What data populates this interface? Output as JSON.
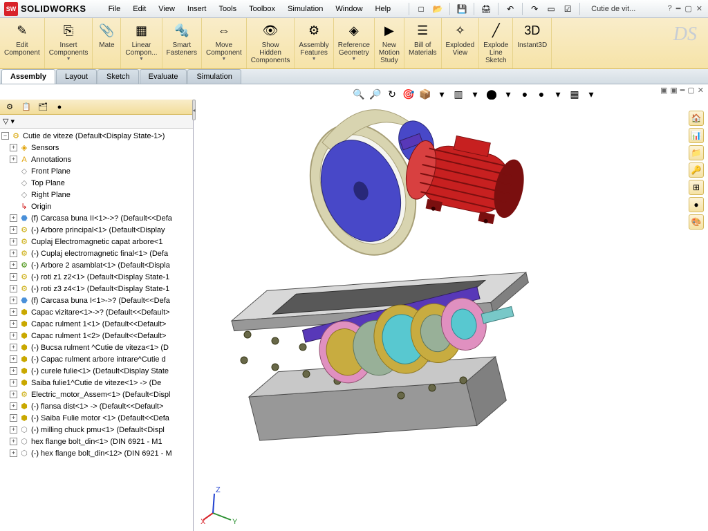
{
  "brand": "SOLIDWORKS",
  "logo_text": "SW",
  "menus": [
    "File",
    "Edit",
    "View",
    "Insert",
    "Tools",
    "Toolbox",
    "Simulation",
    "Window",
    "Help"
  ],
  "doc_name": "Cutie de vit...",
  "help_icon": "?",
  "qat": {
    "new": "□",
    "open": "📂",
    "save": "💾",
    "print": "🖨",
    "undo": "↶",
    "redo": "↷",
    "select": "▭",
    "options": "☑"
  },
  "ribbon": [
    {
      "icon": "✎",
      "label": "Edit\nComponent",
      "dd": false
    },
    {
      "icon": "⎘",
      "label": "Insert\nComponents",
      "dd": true
    },
    {
      "icon": "📎",
      "label": "Mate",
      "dd": false
    },
    {
      "icon": "▦",
      "label": "Linear\nCompon...",
      "dd": true
    },
    {
      "icon": "🔩",
      "label": "Smart\nFasteners",
      "dd": false
    },
    {
      "icon": "⇔",
      "label": "Move\nComponent",
      "dd": true
    },
    {
      "icon": "👁",
      "label": "Show\nHidden\nComponents",
      "dd": false
    },
    {
      "icon": "⚙",
      "label": "Assembly\nFeatures",
      "dd": true
    },
    {
      "icon": "◈",
      "label": "Reference\nGeometry",
      "dd": true
    },
    {
      "icon": "▶",
      "label": "New\nMotion\nStudy",
      "dd": false
    },
    {
      "icon": "☰",
      "label": "Bill of\nMaterials",
      "dd": false
    },
    {
      "icon": "✧",
      "label": "Exploded\nView",
      "dd": false
    },
    {
      "icon": "╱",
      "label": "Explode\nLine\nSketch",
      "dd": false
    },
    {
      "icon": "3D",
      "label": "Instant3D",
      "dd": false
    }
  ],
  "tabs": [
    "Assembly",
    "Layout",
    "Sketch",
    "Evaluate",
    "Simulation"
  ],
  "active_tab": 0,
  "viewbar_icons": [
    "🔍",
    "🔎",
    "↻",
    "🎯",
    "📦",
    "▾",
    "▥",
    "▾",
    "⬤",
    "▾",
    "●",
    "●",
    "▾",
    "▦",
    "▾"
  ],
  "mgr_tab_icons": [
    "⚙",
    "📋",
    "🗂",
    "●"
  ],
  "filter_label": "▽ ▾",
  "tree_root": "Cutie de viteze  (Default<Display State-1>)",
  "tree": [
    {
      "exp": "+",
      "ico": "◈",
      "c": "#e0a000",
      "t": "Sensors"
    },
    {
      "exp": "+",
      "ico": "A",
      "c": "#e0a000",
      "t": "Annotations"
    },
    {
      "exp": "",
      "ico": "◇",
      "c": "#888",
      "t": "Front Plane"
    },
    {
      "exp": "",
      "ico": "◇",
      "c": "#888",
      "t": "Top Plane"
    },
    {
      "exp": "",
      "ico": "◇",
      "c": "#888",
      "t": "Right Plane"
    },
    {
      "exp": "",
      "ico": "↳",
      "c": "#c00",
      "t": "Origin"
    },
    {
      "exp": "+",
      "ico": "⬣",
      "c": "#4a90d9",
      "t": "(f) Carcasa buna II<1>->?  (Default<<Defa"
    },
    {
      "exp": "+",
      "ico": "⚙",
      "c": "#c9a800",
      "t": "(-) Arbore principal<1>  (Default<Display"
    },
    {
      "exp": "+",
      "ico": "⚙",
      "c": "#c9a800",
      "t": "Cuplaj Electromagnetic capat arbore<1"
    },
    {
      "exp": "+",
      "ico": "⚙",
      "c": "#c9a800",
      "t": "(-) Cuplaj electromagnetic final<1>  (Defa"
    },
    {
      "exp": "+",
      "ico": "⚙",
      "c": "#3a8a00",
      "t": "(-) Arbore 2 asamblat<1>  (Default<Displa"
    },
    {
      "exp": "+",
      "ico": "⚙",
      "c": "#c9a800",
      "t": "(-) roti z1 z2<1>  (Default<Display State-1"
    },
    {
      "exp": "+",
      "ico": "⚙",
      "c": "#c9a800",
      "t": "(-) roti z3 z4<1>  (Default<Display State-1"
    },
    {
      "exp": "+",
      "ico": "⬣",
      "c": "#4a90d9",
      "t": "(f) Carcasa buna I<1>->?  (Default<<Defa"
    },
    {
      "exp": "+",
      "ico": "⬢",
      "c": "#c9a800",
      "t": "Capac vizitare<1>->?  (Default<<Default>"
    },
    {
      "exp": "+",
      "ico": "⬢",
      "c": "#c9a800",
      "t": "Capac rulment 1<1>  (Default<<Default>"
    },
    {
      "exp": "+",
      "ico": "⬢",
      "c": "#c9a800",
      "t": "Capac rulment 1<2>  (Default<<Default>"
    },
    {
      "exp": "+",
      "ico": "⬢",
      "c": "#c9a800",
      "t": "(-) Bucsa rulment ^Cutie de viteza<1>  (D"
    },
    {
      "exp": "+",
      "ico": "⬢",
      "c": "#c9a800",
      "t": "(-) Capac rulment arbore intrare^Cutie d"
    },
    {
      "exp": "+",
      "ico": "⬢",
      "c": "#c9a800",
      "t": "(-) curele fulie<1>  (Default<Display State"
    },
    {
      "exp": "+",
      "ico": "⬢",
      "c": "#c9a800",
      "t": "Saiba fulie1^Cutie de viteze<1> ->  (De"
    },
    {
      "exp": "+",
      "ico": "⚙",
      "c": "#c9a800",
      "t": "Electric_motor_Assem<1>  (Default<Displ"
    },
    {
      "exp": "+",
      "ico": "⬢",
      "c": "#c9a800",
      "t": "(-) flansa dist<1> ->  (Default<<Default>"
    },
    {
      "exp": "+",
      "ico": "⬢",
      "c": "#c9a800",
      "t": "(-) Saiba Fulie motor <1>  (Default<<Defa"
    },
    {
      "exp": "+",
      "ico": "⬡",
      "c": "#888",
      "t": "(-) milling chuck pmu<1>  (Default<Displ"
    },
    {
      "exp": "+",
      "ico": "⬡",
      "c": "#888",
      "t": "hex flange bolt_din<1>  (DIN 6921 - M1"
    },
    {
      "exp": "+",
      "ico": "⬡",
      "c": "#888",
      "t": "(-) hex flange bolt_din<12>  (DIN 6921 - M"
    }
  ],
  "side_tools": [
    "🏠",
    "📊",
    "📁",
    "🔑",
    "⊞",
    "●",
    "🎨"
  ],
  "triad": {
    "x": "X",
    "y": "Y",
    "z": "Z",
    "x_color": "#d8232a",
    "y_color": "#2a9030",
    "z_color": "#2040d0"
  },
  "model_colors": {
    "motor_body": "#c72020",
    "motor_dark": "#7a0f0f",
    "motor_top": "#d84040",
    "pulley_face": "#4848c8",
    "pulley_edge": "#282878",
    "belt": "#d8d4b0",
    "belt_dark": "#a8a078",
    "case_upper": "#c8c8c8",
    "case_dark": "#808080",
    "case_edge": "#505050",
    "case_lower": "#989898",
    "shaft": "#5838b8",
    "shaft_end": "#78c8c8",
    "gear_brass": "#c8ac40",
    "gear_brass_d": "#907820",
    "gear_steel": "#98b098",
    "ring_pink": "#e090c0",
    "ring_cyan": "#58c8d0",
    "bolt": "#686848"
  }
}
